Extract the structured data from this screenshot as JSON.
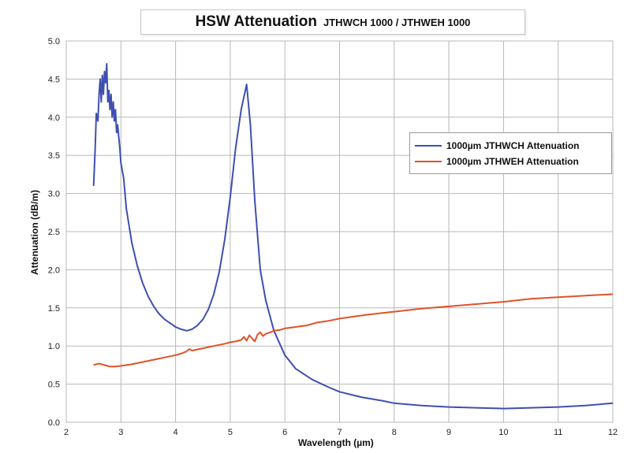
{
  "title": {
    "main": "HSW Attenuation",
    "sub": "JTHWCH 1000 / JTHWEH 1000"
  },
  "chart_data": {
    "type": "line",
    "xlabel": "Wavelength (µm)",
    "ylabel": "Attenuation (dB/m)",
    "xlim": [
      2,
      12
    ],
    "ylim": [
      0,
      5
    ],
    "xticks": [
      2,
      3,
      4,
      5,
      6,
      7,
      8,
      9,
      10,
      11,
      12
    ],
    "yticks": [
      "0.0",
      "0.5",
      "1.0",
      "1.5",
      "2.0",
      "2.5",
      "3.0",
      "3.5",
      "4.0",
      "4.5",
      "5.0"
    ],
    "grid": true,
    "legend_position": "top-right",
    "series": [
      {
        "name": "1000µm JTHWCH Attenuation",
        "color": "#3f4fb0",
        "x": [
          2.5,
          2.53,
          2.55,
          2.58,
          2.6,
          2.62,
          2.64,
          2.66,
          2.68,
          2.7,
          2.72,
          2.74,
          2.76,
          2.78,
          2.8,
          2.82,
          2.84,
          2.86,
          2.88,
          2.9,
          2.92,
          2.94,
          2.96,
          2.98,
          3.0,
          3.05,
          3.1,
          3.2,
          3.3,
          3.4,
          3.5,
          3.6,
          3.7,
          3.8,
          3.9,
          4.0,
          4.1,
          4.2,
          4.3,
          4.4,
          4.5,
          4.6,
          4.7,
          4.8,
          4.9,
          5.0,
          5.1,
          5.2,
          5.3,
          5.37,
          5.45,
          5.55,
          5.65,
          5.8,
          6.0,
          6.2,
          6.5,
          6.8,
          7.0,
          7.4,
          7.8,
          8.0,
          8.5,
          9.0,
          9.5,
          10.0,
          10.5,
          11.0,
          11.5,
          12.0
        ],
        "values": [
          3.1,
          3.6,
          4.05,
          3.95,
          4.3,
          4.5,
          4.2,
          4.55,
          4.3,
          4.6,
          4.45,
          4.7,
          4.2,
          4.35,
          4.1,
          4.3,
          4.0,
          4.2,
          3.95,
          4.1,
          3.8,
          3.9,
          3.75,
          3.6,
          3.4,
          3.2,
          2.8,
          2.35,
          2.05,
          1.82,
          1.65,
          1.52,
          1.42,
          1.35,
          1.3,
          1.25,
          1.22,
          1.2,
          1.22,
          1.27,
          1.35,
          1.48,
          1.68,
          1.97,
          2.4,
          2.95,
          3.6,
          4.1,
          4.43,
          3.9,
          2.9,
          2.0,
          1.6,
          1.2,
          0.88,
          0.7,
          0.56,
          0.46,
          0.4,
          0.33,
          0.28,
          0.25,
          0.22,
          0.2,
          0.19,
          0.18,
          0.19,
          0.2,
          0.22,
          0.25
        ]
      },
      {
        "name": "1000µm JTHWEH Attenuation",
        "color": "#e0522a",
        "x": [
          2.5,
          2.6,
          2.7,
          2.8,
          2.9,
          3.0,
          3.2,
          3.4,
          3.6,
          3.8,
          4.0,
          4.1,
          4.2,
          4.25,
          4.3,
          4.5,
          4.7,
          4.9,
          5.0,
          5.1,
          5.2,
          5.25,
          5.3,
          5.35,
          5.4,
          5.45,
          5.5,
          5.55,
          5.6,
          5.65,
          5.7,
          5.8,
          5.9,
          6.0,
          6.2,
          6.4,
          6.6,
          6.8,
          7.0,
          7.5,
          8.0,
          8.5,
          9.0,
          9.5,
          10.0,
          10.5,
          11.0,
          11.5,
          12.0
        ],
        "values": [
          0.75,
          0.77,
          0.75,
          0.73,
          0.73,
          0.74,
          0.76,
          0.79,
          0.82,
          0.85,
          0.88,
          0.9,
          0.93,
          0.96,
          0.94,
          0.97,
          1.0,
          1.03,
          1.05,
          1.06,
          1.08,
          1.12,
          1.07,
          1.14,
          1.1,
          1.06,
          1.15,
          1.18,
          1.13,
          1.16,
          1.17,
          1.2,
          1.21,
          1.23,
          1.25,
          1.27,
          1.31,
          1.33,
          1.36,
          1.41,
          1.45,
          1.49,
          1.52,
          1.55,
          1.58,
          1.62,
          1.64,
          1.66,
          1.68
        ]
      }
    ]
  }
}
